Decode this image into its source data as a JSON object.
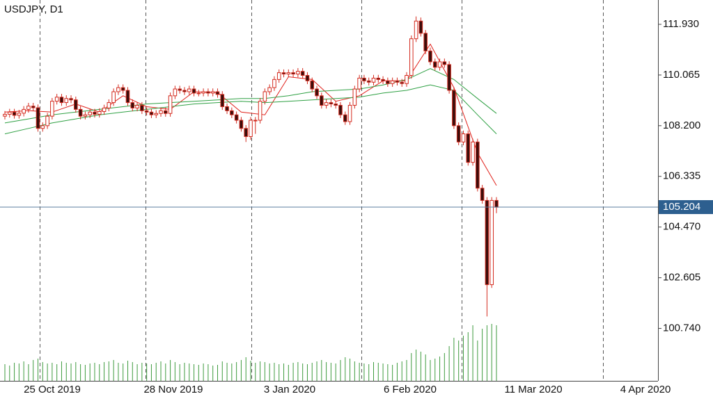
{
  "chart_data": {
    "type": "candlestick",
    "title": "USDJPY, D1",
    "open": [
      108.55,
      108.62,
      108.7,
      108.58,
      108.66,
      108.8,
      108.92,
      108.86,
      108.1,
      108.2,
      108.55,
      109.1,
      109.25,
      109.05,
      109.2,
      109.15,
      108.8,
      108.55,
      108.6,
      108.7,
      108.62,
      108.72,
      108.85,
      109.05,
      109.45,
      109.6,
      109.5,
      109.05,
      108.85,
      108.95,
      108.75,
      108.7,
      108.6,
      108.65,
      108.75,
      108.65,
      109.3,
      109.55,
      109.5,
      109.45,
      109.55,
      109.4,
      109.4,
      109.45,
      109.4,
      109.45,
      109.35,
      108.9,
      108.75,
      108.6,
      108.4,
      108.1,
      107.8,
      108.4,
      108.4,
      109.1,
      109.45,
      109.6,
      109.9,
      110.15,
      110.1,
      110.15,
      110.1,
      110.2,
      110.05,
      109.85,
      109.55,
      109.3,
      108.95,
      109.05,
      109.0,
      108.95,
      108.6,
      108.35,
      108.95,
      109.55,
      109.95,
      109.85,
      109.8,
      109.95,
      109.9,
      109.85,
      109.75,
      109.85,
      109.8,
      109.75,
      110.05,
      111.4,
      112.05,
      111.6,
      110.95,
      110.55,
      110.35,
      110.55,
      110.45,
      109.5,
      108.2,
      107.6,
      107.9,
      106.85,
      107.6,
      105.9,
      105.45,
      102.35,
      105.45
    ],
    "high": [
      108.74,
      108.82,
      108.82,
      108.78,
      108.92,
      109.04,
      109.04,
      108.98,
      108.32,
      108.67,
      109.22,
      109.37,
      109.37,
      109.32,
      109.32,
      109.27,
      108.92,
      108.72,
      108.82,
      108.82,
      108.84,
      108.97,
      109.17,
      109.57,
      109.72,
      109.72,
      109.62,
      109.17,
      109.07,
      109.07,
      108.87,
      108.82,
      108.77,
      108.87,
      108.87,
      109.42,
      109.67,
      109.67,
      109.62,
      109.67,
      109.67,
      109.52,
      109.57,
      109.57,
      109.57,
      109.57,
      109.47,
      109.02,
      108.87,
      108.72,
      108.52,
      108.22,
      108.52,
      108.52,
      109.22,
      109.57,
      109.72,
      110.02,
      110.27,
      110.27,
      110.27,
      110.27,
      110.32,
      110.32,
      110.17,
      109.97,
      109.67,
      109.42,
      109.17,
      109.17,
      109.12,
      109.07,
      108.72,
      109.07,
      109.67,
      110.07,
      110.07,
      109.97,
      110.07,
      110.07,
      110.02,
      109.97,
      109.97,
      109.97,
      109.92,
      110.17,
      111.52,
      112.22,
      112.18,
      111.72,
      111.07,
      110.67,
      110.67,
      110.67,
      110.57,
      109.62,
      108.32,
      108.02,
      108.02,
      107.72,
      107.72,
      106.02,
      105.57,
      105.57,
      105.57
    ],
    "low": [
      108.43,
      108.5,
      108.46,
      108.46,
      108.54,
      108.68,
      108.74,
      107.98,
      107.98,
      108.08,
      108.43,
      108.98,
      108.93,
      108.93,
      109.03,
      108.68,
      108.43,
      108.43,
      108.48,
      108.5,
      108.5,
      108.6,
      108.73,
      108.93,
      109.33,
      109.38,
      108.93,
      108.73,
      108.73,
      108.63,
      108.58,
      108.48,
      108.48,
      108.53,
      108.53,
      108.53,
      109.18,
      109.38,
      109.33,
      109.33,
      109.28,
      109.28,
      109.28,
      109.28,
      109.28,
      109.23,
      108.78,
      108.63,
      108.48,
      108.28,
      107.98,
      107.6,
      107.68,
      107.9,
      108.28,
      108.98,
      109.33,
      109.48,
      109.78,
      109.98,
      109.98,
      109.98,
      109.98,
      109.93,
      109.73,
      109.43,
      109.18,
      108.83,
      108.83,
      108.88,
      108.83,
      108.48,
      108.23,
      108.23,
      108.83,
      109.43,
      109.73,
      109.68,
      109.68,
      109.78,
      109.73,
      109.63,
      109.63,
      109.68,
      109.63,
      109.63,
      109.93,
      111.28,
      111.48,
      110.83,
      110.43,
      110.23,
      110.23,
      110.33,
      109.38,
      108.08,
      107.48,
      107.48,
      106.73,
      106.73,
      105.78,
      105.33,
      101.18,
      102.23,
      104.98
    ],
    "close": [
      108.62,
      108.7,
      108.58,
      108.66,
      108.8,
      108.92,
      108.86,
      108.1,
      108.2,
      108.55,
      109.1,
      109.25,
      109.05,
      109.2,
      109.15,
      108.8,
      108.55,
      108.6,
      108.7,
      108.62,
      108.72,
      108.85,
      109.05,
      109.45,
      109.6,
      109.5,
      109.05,
      108.85,
      108.95,
      108.75,
      108.7,
      108.6,
      108.65,
      108.75,
      108.65,
      109.3,
      109.55,
      109.5,
      109.45,
      109.55,
      109.4,
      109.4,
      109.45,
      109.4,
      109.45,
      109.35,
      108.9,
      108.75,
      108.6,
      108.4,
      108.1,
      107.8,
      108.4,
      108.4,
      109.1,
      109.45,
      109.6,
      109.9,
      110.15,
      110.1,
      110.15,
      110.1,
      110.2,
      110.05,
      109.85,
      109.55,
      109.3,
      108.95,
      109.05,
      109.0,
      108.95,
      108.6,
      108.35,
      108.95,
      109.55,
      109.95,
      109.85,
      109.8,
      109.95,
      109.9,
      109.85,
      109.75,
      109.85,
      109.8,
      109.75,
      110.05,
      111.4,
      112.05,
      111.6,
      110.95,
      110.55,
      110.35,
      110.55,
      110.45,
      109.5,
      108.2,
      107.6,
      107.9,
      106.85,
      107.6,
      105.9,
      105.45,
      102.35,
      105.45,
      105.2
    ],
    "volume": [
      24,
      22,
      26,
      25,
      28,
      24,
      30,
      32,
      27,
      25,
      26,
      24,
      28,
      26,
      25,
      27,
      24,
      23,
      25,
      26,
      24,
      27,
      28,
      30,
      26,
      25,
      29,
      27,
      24,
      26,
      25,
      24,
      26,
      28,
      25,
      30,
      27,
      24,
      26,
      25,
      24,
      23,
      25,
      24,
      22,
      23,
      28,
      26,
      25,
      27,
      30,
      34,
      29,
      26,
      28,
      27,
      25,
      26,
      24,
      25,
      23,
      26,
      27,
      25,
      24,
      26,
      28,
      30,
      27,
      26,
      25,
      30,
      34,
      32,
      28,
      26,
      25,
      24,
      27,
      26,
      25,
      24,
      23,
      26,
      28,
      30,
      40,
      45,
      42,
      38,
      30,
      32,
      35,
      40,
      50,
      62,
      58,
      65,
      70,
      80,
      58,
      75,
      80,
      82,
      80
    ],
    "ma": {
      "x": [
        0,
        5,
        10,
        15,
        20,
        25,
        30,
        35,
        40,
        45,
        50,
        55,
        60,
        65,
        70,
        75,
        80,
        85,
        90,
        95,
        100,
        104
      ],
      "series": [
        {
          "color": "#e0201a",
          "values": [
            108.7,
            108.75,
            108.7,
            109.0,
            108.7,
            109.3,
            108.9,
            108.8,
            109.45,
            109.42,
            108.7,
            108.6,
            110.0,
            109.9,
            109.1,
            109.3,
            109.85,
            109.85,
            111.2,
            109.6,
            107.2,
            106.0
          ]
        },
        {
          "color": "#2ea043",
          "values": [
            108.3,
            108.45,
            108.6,
            108.7,
            108.8,
            108.9,
            109.0,
            109.05,
            109.1,
            109.15,
            109.2,
            109.2,
            109.3,
            109.45,
            109.5,
            109.55,
            109.7,
            109.9,
            110.3,
            109.9,
            109.2,
            108.65
          ]
        },
        {
          "color": "#2ea043",
          "values": [
            107.9,
            108.1,
            108.3,
            108.45,
            108.6,
            108.7,
            108.8,
            108.9,
            109.0,
            109.05,
            109.1,
            109.05,
            109.1,
            109.15,
            109.2,
            109.25,
            109.4,
            109.5,
            109.7,
            109.5,
            108.6,
            107.9
          ]
        }
      ]
    },
    "current_price": 105.204,
    "ylim": [
      98.81,
      112.825
    ],
    "yticks": [
      {
        "value": 111.93,
        "label": "111.930"
      },
      110.065,
      {
        "value": 108.2,
        "label": "108.200"
      },
      106.335,
      {
        "value": 104.47,
        "label": "104.470"
      },
      102.605,
      {
        "value": 100.74,
        "label": "100.740"
      }
    ],
    "x_labels": [
      "25 Oct 2019",
      "28 Nov 2019",
      "3 Jan 2020",
      "6 Feb 2020",
      "11 Mar 2020",
      "4 Apr 2020"
    ]
  }
}
